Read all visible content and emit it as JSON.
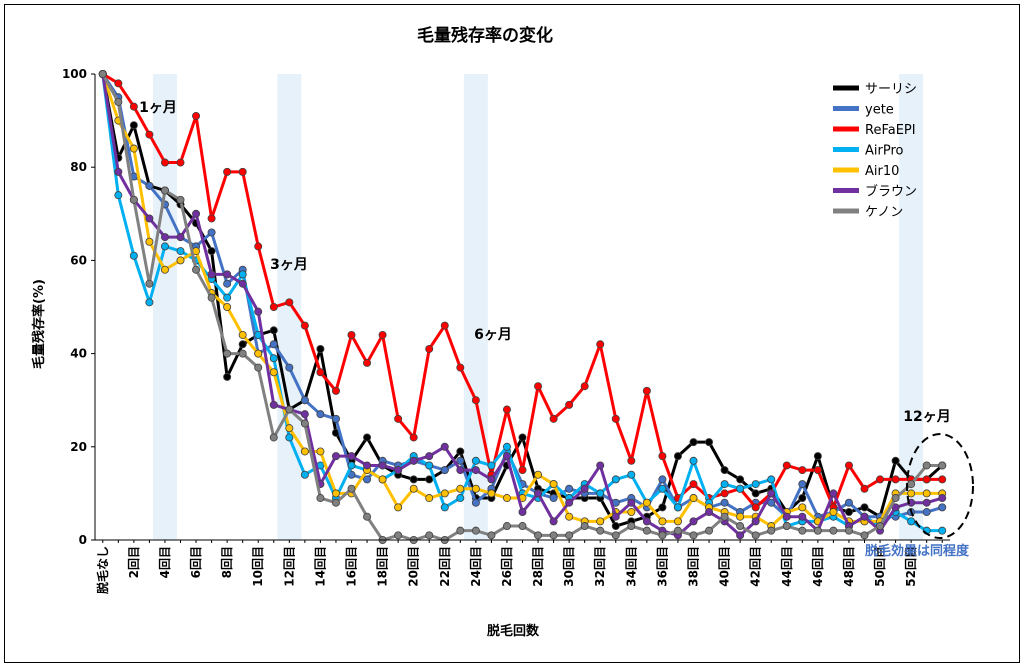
{
  "chart_data": {
    "type": "line",
    "title": "毛量残存率の変化",
    "xlabel": "脱毛回数",
    "ylabel": "毛量残存率(%)",
    "ylim": [
      0,
      100
    ],
    "yticks": [
      "0",
      "20",
      "40",
      "60",
      "80",
      "100"
    ],
    "x_first_label": "脱毛なし",
    "x_tick_labels": [
      "2回目",
      "4回目",
      "6回目",
      "8回目",
      "10回目",
      "12回目",
      "14回目",
      "16回目",
      "18回目",
      "20回目",
      "22回目",
      "24回目",
      "26回目",
      "28回目",
      "30回目",
      "32回目",
      "34回目",
      "36回目",
      "38回目",
      "40回目",
      "42回目",
      "44回目",
      "46回目",
      "48回目",
      "50回目",
      "52回目"
    ],
    "period_annotations": [
      {
        "label": "1ヶ月",
        "at": 4
      },
      {
        "label": "3ヶ月",
        "at": 12
      },
      {
        "label": "6ヶ月",
        "at": 24
      },
      {
        "label": "12ヶ月",
        "at": 52
      }
    ],
    "note": "脱毛効果は同程度",
    "legend_position": "top-right",
    "grid": false,
    "series": [
      {
        "name": "サーリシ",
        "color": "#000000",
        "values": [
          100,
          82,
          89,
          76,
          75,
          72,
          68,
          62,
          35,
          42,
          44,
          45,
          28,
          30,
          41,
          23,
          17,
          22,
          16,
          14,
          13,
          13,
          15,
          19,
          9,
          9,
          16,
          22,
          11,
          10,
          9,
          9,
          9,
          3,
          4,
          5,
          7,
          18,
          21,
          21,
          15,
          13,
          10,
          11,
          6,
          9,
          18,
          7,
          6,
          7,
          5,
          17,
          13,
          13,
          16
        ]
      },
      {
        "name": "yete",
        "color": "#4472c4",
        "values": [
          100,
          95,
          78,
          76,
          72,
          65,
          63,
          66,
          55,
          58,
          40,
          42,
          37,
          30,
          27,
          26,
          14,
          13,
          17,
          16,
          17,
          16,
          15,
          17,
          8,
          11,
          19,
          12,
          10,
          9,
          11,
          10,
          10,
          8,
          9,
          7,
          13,
          7,
          9,
          7,
          8,
          6,
          8,
          8,
          5,
          12,
          5,
          6,
          8,
          5,
          5,
          5,
          6,
          6,
          7
        ]
      },
      {
        "name": "ReFaEPI",
        "color": "#ff0000",
        "values": [
          100,
          98,
          93,
          87,
          81,
          81,
          91,
          69,
          79,
          79,
          63,
          50,
          51,
          46,
          36,
          32,
          44,
          38,
          44,
          26,
          22,
          41,
          46,
          37,
          30,
          14,
          28,
          15,
          33,
          26,
          29,
          33,
          42,
          26,
          17,
          32,
          18,
          9,
          12,
          9,
          10,
          11,
          7,
          10,
          16,
          15,
          15,
          7,
          16,
          11,
          13,
          13,
          13,
          13,
          13
        ]
      },
      {
        "name": "AirPro",
        "color": "#00b0f0",
        "values": [
          100,
          74,
          61,
          51,
          63,
          62,
          60,
          56,
          52,
          57,
          44,
          39,
          22,
          14,
          16,
          9,
          16,
          15,
          13,
          15,
          18,
          16,
          7,
          9,
          17,
          16,
          20,
          10,
          9,
          12,
          9,
          12,
          10,
          13,
          14,
          8,
          11,
          7,
          17,
          8,
          12,
          11,
          12,
          13,
          3,
          4,
          4,
          5,
          3,
          5,
          3,
          6,
          4,
          2,
          2
        ]
      },
      {
        "name": "Air10",
        "color": "#ffc000",
        "values": [
          100,
          90,
          84,
          64,
          58,
          60,
          62,
          53,
          50,
          44,
          40,
          36,
          24,
          19,
          19,
          10,
          10,
          15,
          13,
          7,
          11,
          9,
          10,
          11,
          11,
          10,
          9,
          9,
          14,
          12,
          5,
          4,
          4,
          6,
          6,
          8,
          4,
          4,
          9,
          7,
          6,
          5,
          5,
          3,
          6,
          7,
          4,
          6,
          4,
          4,
          4,
          10,
          10,
          10,
          10
        ]
      },
      {
        "name": "ブラウン",
        "color": "#7030a0",
        "values": [
          100,
          79,
          73,
          69,
          65,
          65,
          70,
          57,
          57,
          55,
          49,
          29,
          28,
          27,
          12,
          18,
          18,
          16,
          16,
          15,
          17,
          18,
          20,
          15,
          15,
          13,
          18,
          6,
          10,
          4,
          8,
          11,
          16,
          5,
          8,
          4,
          2,
          1,
          4,
          6,
          4,
          1,
          4,
          10,
          5,
          5,
          2,
          10,
          3,
          5,
          2,
          7,
          8,
          8,
          9
        ]
      },
      {
        "name": "ケノン",
        "color": "#808080",
        "values": [
          100,
          94,
          73,
          55,
          75,
          73,
          58,
          52,
          40,
          40,
          37,
          22,
          28,
          25,
          9,
          8,
          11,
          5,
          0,
          1,
          0,
          1,
          0,
          2,
          2,
          1,
          3,
          3,
          1,
          1,
          1,
          3,
          2,
          1,
          3,
          2,
          1,
          2,
          1,
          2,
          5,
          3,
          1,
          2,
          3,
          2,
          2,
          2,
          2,
          1,
          3,
          9,
          12,
          16,
          16
        ]
      }
    ]
  }
}
